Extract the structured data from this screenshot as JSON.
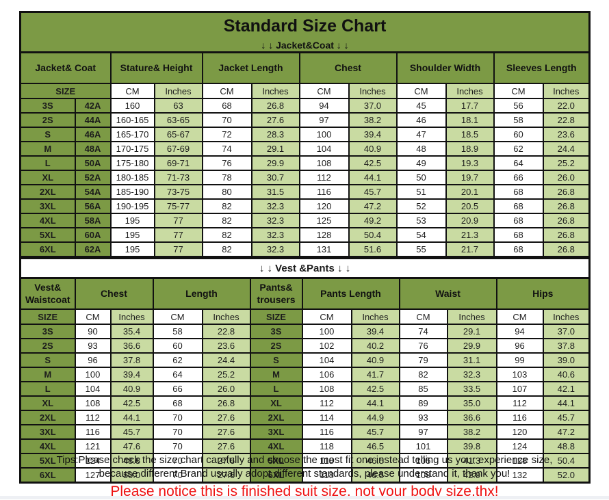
{
  "title": "Standard Size Chart",
  "units": {
    "size": "SIZE",
    "cm": "CM",
    "inches": "Inches"
  },
  "colors": {
    "header_green": "#7c9a45",
    "light_green": "#c9dba2",
    "notice_red": "#ee1111"
  },
  "jacket": {
    "subtitle": "↓ ↓  Jacket&Coat ↓ ↓",
    "columns": [
      "Jacket& Coat",
      "Stature& Height",
      "Jacket Length",
      "Chest",
      "Shoulder Width",
      "Sleeves Length"
    ],
    "rows": [
      [
        "3S",
        "42A",
        "160",
        "63",
        "68",
        "26.8",
        "94",
        "37.0",
        "45",
        "17.7",
        "56",
        "22.0"
      ],
      [
        "2S",
        "44A",
        "160-165",
        "63-65",
        "70",
        "27.6",
        "97",
        "38.2",
        "46",
        "18.1",
        "58",
        "22.8"
      ],
      [
        "S",
        "46A",
        "165-170",
        "65-67",
        "72",
        "28.3",
        "100",
        "39.4",
        "47",
        "18.5",
        "60",
        "23.6"
      ],
      [
        "M",
        "48A",
        "170-175",
        "67-69",
        "74",
        "29.1",
        "104",
        "40.9",
        "48",
        "18.9",
        "62",
        "24.4"
      ],
      [
        "L",
        "50A",
        "175-180",
        "69-71",
        "76",
        "29.9",
        "108",
        "42.5",
        "49",
        "19.3",
        "64",
        "25.2"
      ],
      [
        "XL",
        "52A",
        "180-185",
        "71-73",
        "78",
        "30.7",
        "112",
        "44.1",
        "50",
        "19.7",
        "66",
        "26.0"
      ],
      [
        "2XL",
        "54A",
        "185-190",
        "73-75",
        "80",
        "31.5",
        "116",
        "45.7",
        "51",
        "20.1",
        "68",
        "26.8"
      ],
      [
        "3XL",
        "56A",
        "190-195",
        "75-77",
        "82",
        "32.3",
        "120",
        "47.2",
        "52",
        "20.5",
        "68",
        "26.8"
      ],
      [
        "4XL",
        "58A",
        "195",
        "77",
        "82",
        "32.3",
        "125",
        "49.2",
        "53",
        "20.9",
        "68",
        "26.8"
      ],
      [
        "5XL",
        "60A",
        "195",
        "77",
        "82",
        "32.3",
        "128",
        "50.4",
        "54",
        "21.3",
        "68",
        "26.8"
      ],
      [
        "6XL",
        "62A",
        "195",
        "77",
        "82",
        "32.3",
        "131",
        "51.6",
        "55",
        "21.7",
        "68",
        "26.8"
      ]
    ]
  },
  "vest": {
    "divider": "↓ ↓  Vest &Pants ↓ ↓",
    "columns": [
      "Vest& Waistcoat",
      "Chest",
      "Length",
      "Pants& trousers",
      "Pants Length",
      "Waist",
      "Hips"
    ],
    "rows": [
      [
        "3S",
        "90",
        "35.4",
        "58",
        "22.8",
        "3S",
        "100",
        "39.4",
        "74",
        "29.1",
        "94",
        "37.0"
      ],
      [
        "2S",
        "93",
        "36.6",
        "60",
        "23.6",
        "2S",
        "102",
        "40.2",
        "76",
        "29.9",
        "96",
        "37.8"
      ],
      [
        "S",
        "96",
        "37.8",
        "62",
        "24.4",
        "S",
        "104",
        "40.9",
        "79",
        "31.1",
        "99",
        "39.0"
      ],
      [
        "M",
        "100",
        "39.4",
        "64",
        "25.2",
        "M",
        "106",
        "41.7",
        "82",
        "32.3",
        "103",
        "40.6"
      ],
      [
        "L",
        "104",
        "40.9",
        "66",
        "26.0",
        "L",
        "108",
        "42.5",
        "85",
        "33.5",
        "107",
        "42.1"
      ],
      [
        "XL",
        "108",
        "42.5",
        "68",
        "26.8",
        "XL",
        "112",
        "44.1",
        "89",
        "35.0",
        "112",
        "44.1"
      ],
      [
        "2XL",
        "112",
        "44.1",
        "70",
        "27.6",
        "2XL",
        "114",
        "44.9",
        "93",
        "36.6",
        "116",
        "45.7"
      ],
      [
        "3XL",
        "116",
        "45.7",
        "70",
        "27.6",
        "3XL",
        "116",
        "45.7",
        "97",
        "38.2",
        "120",
        "47.2"
      ],
      [
        "4XL",
        "121",
        "47.6",
        "70",
        "27.6",
        "4XL",
        "118",
        "46.5",
        "101",
        "39.8",
        "124",
        "48.8"
      ],
      [
        "5XL",
        "124",
        "48.8",
        "70",
        "27.6",
        "5XL",
        "118",
        "46.5",
        "105",
        "41.3",
        "128",
        "50.4"
      ],
      [
        "6XL",
        "127",
        "50.0",
        "70",
        "27.6",
        "6XL",
        "118",
        "46.5",
        "109",
        "42.9",
        "132",
        "52.0"
      ]
    ]
  },
  "footer": {
    "tips_line1": "Tips:Please check the size chart carefully and choose the most fit one instead telling us your experience size,",
    "tips_line2": "because different Brand usually adopt different standards, please understand it, thank you!",
    "notice": "Please notice this is finished suit size, not your body size,thx!"
  }
}
